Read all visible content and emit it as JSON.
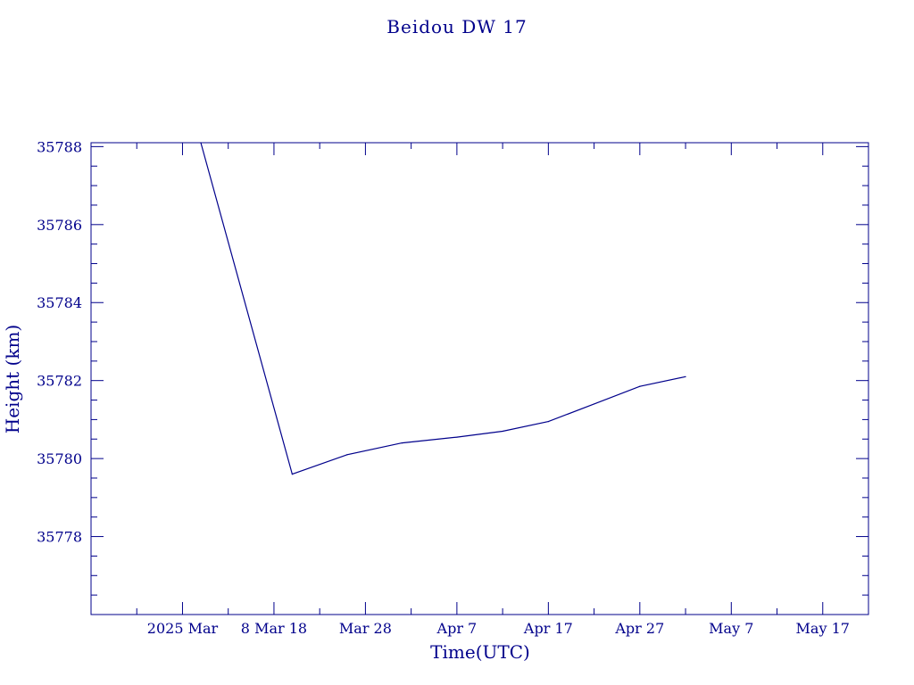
{
  "chart_data": {
    "type": "line",
    "title": "Beidou DW 17",
    "xlabel": "Time(UTC)",
    "ylabel": "Height (km)",
    "color": "#00008b",
    "x_tick_labels": [
      "2025 Mar",
      "8 Mar 18",
      "Mar 28",
      "Apr  7",
      "Apr 17",
      "Apr 27",
      "May  7",
      "May 17"
    ],
    "y_tick_labels": [
      "35778",
      "35780",
      "35782",
      "35784",
      "35786",
      "35788"
    ],
    "ylim": [
      35776.0,
      35788.1
    ],
    "xlim": [
      "2025-02-26",
      "2025-05-22"
    ],
    "grid": false,
    "legend": "none",
    "series": [
      {
        "x": [
          "2025-03-10",
          "2025-03-20",
          "2025-03-26",
          "2025-04-01",
          "2025-04-07",
          "2025-04-12",
          "2025-04-17",
          "2025-04-22",
          "2025-04-27",
          "2025-05-02"
        ],
        "y": [
          35788.1,
          35779.6,
          35780.1,
          35780.4,
          35780.55,
          35780.7,
          35780.95,
          35781.4,
          35781.85,
          35782.1
        ]
      }
    ]
  }
}
